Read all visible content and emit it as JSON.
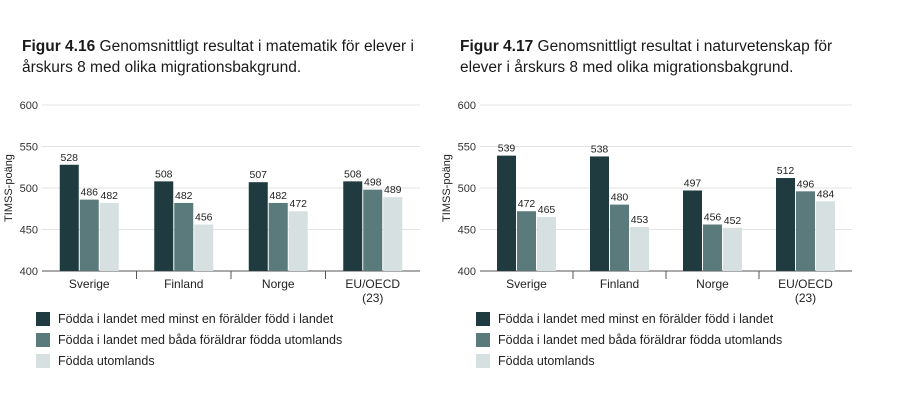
{
  "colors": {
    "series": [
      "#1f3b3f",
      "#5b7a7c",
      "#d6e0e0"
    ],
    "grid": "#e3e3e3",
    "axis": "#555555"
  },
  "legend": [
    "Födda i landet med minst en förälder född i landet",
    "Födda i landet med båda föräldrar födda utomlands",
    "Födda utomlands"
  ],
  "figures": [
    {
      "number": "Figur 4.16",
      "title": " Genomsnittligt resultat i matematik för elever i årskurs 8 med olika migrationsbakgrund."
    },
    {
      "number": "Figur 4.17",
      "title": " Genomsnittligt resultat i naturvetenskap för elever i årskurs 8 med olika migrationsbakgrund."
    }
  ],
  "chart_data": [
    {
      "type": "bar",
      "ylabel": "TIMSS-poäng",
      "ylim": [
        400,
        600
      ],
      "yticks": [
        400,
        450,
        500,
        550,
        600
      ],
      "grid": true,
      "legend_position": "bottom",
      "categories": [
        [
          "Sverige"
        ],
        [
          "Finland"
        ],
        [
          "Norge"
        ],
        [
          "EU/OECD",
          "(23)"
        ]
      ],
      "series": [
        {
          "name": "Födda i landet med minst en förälder född i landet",
          "values": [
            528,
            508,
            507,
            508
          ]
        },
        {
          "name": "Födda i landet med båda föräldrar födda utomlands",
          "values": [
            486,
            482,
            482,
            498
          ]
        },
        {
          "name": "Födda utomlands",
          "values": [
            482,
            456,
            472,
            489
          ]
        }
      ]
    },
    {
      "type": "bar",
      "ylabel": "TIMSS-poäng",
      "ylim": [
        400,
        600
      ],
      "yticks": [
        400,
        450,
        500,
        550,
        600
      ],
      "grid": true,
      "legend_position": "bottom",
      "categories": [
        [
          "Sverige"
        ],
        [
          "Finland"
        ],
        [
          "Norge"
        ],
        [
          "EU/OECD",
          "(23)"
        ]
      ],
      "series": [
        {
          "name": "Födda i landet med minst en förälder född i landet",
          "values": [
            539,
            538,
            497,
            512
          ]
        },
        {
          "name": "Födda i landet med båda föräldrar födda utomlands",
          "values": [
            472,
            480,
            456,
            496
          ]
        },
        {
          "name": "Födda utomlands",
          "values": [
            465,
            453,
            452,
            484
          ]
        }
      ]
    }
  ]
}
